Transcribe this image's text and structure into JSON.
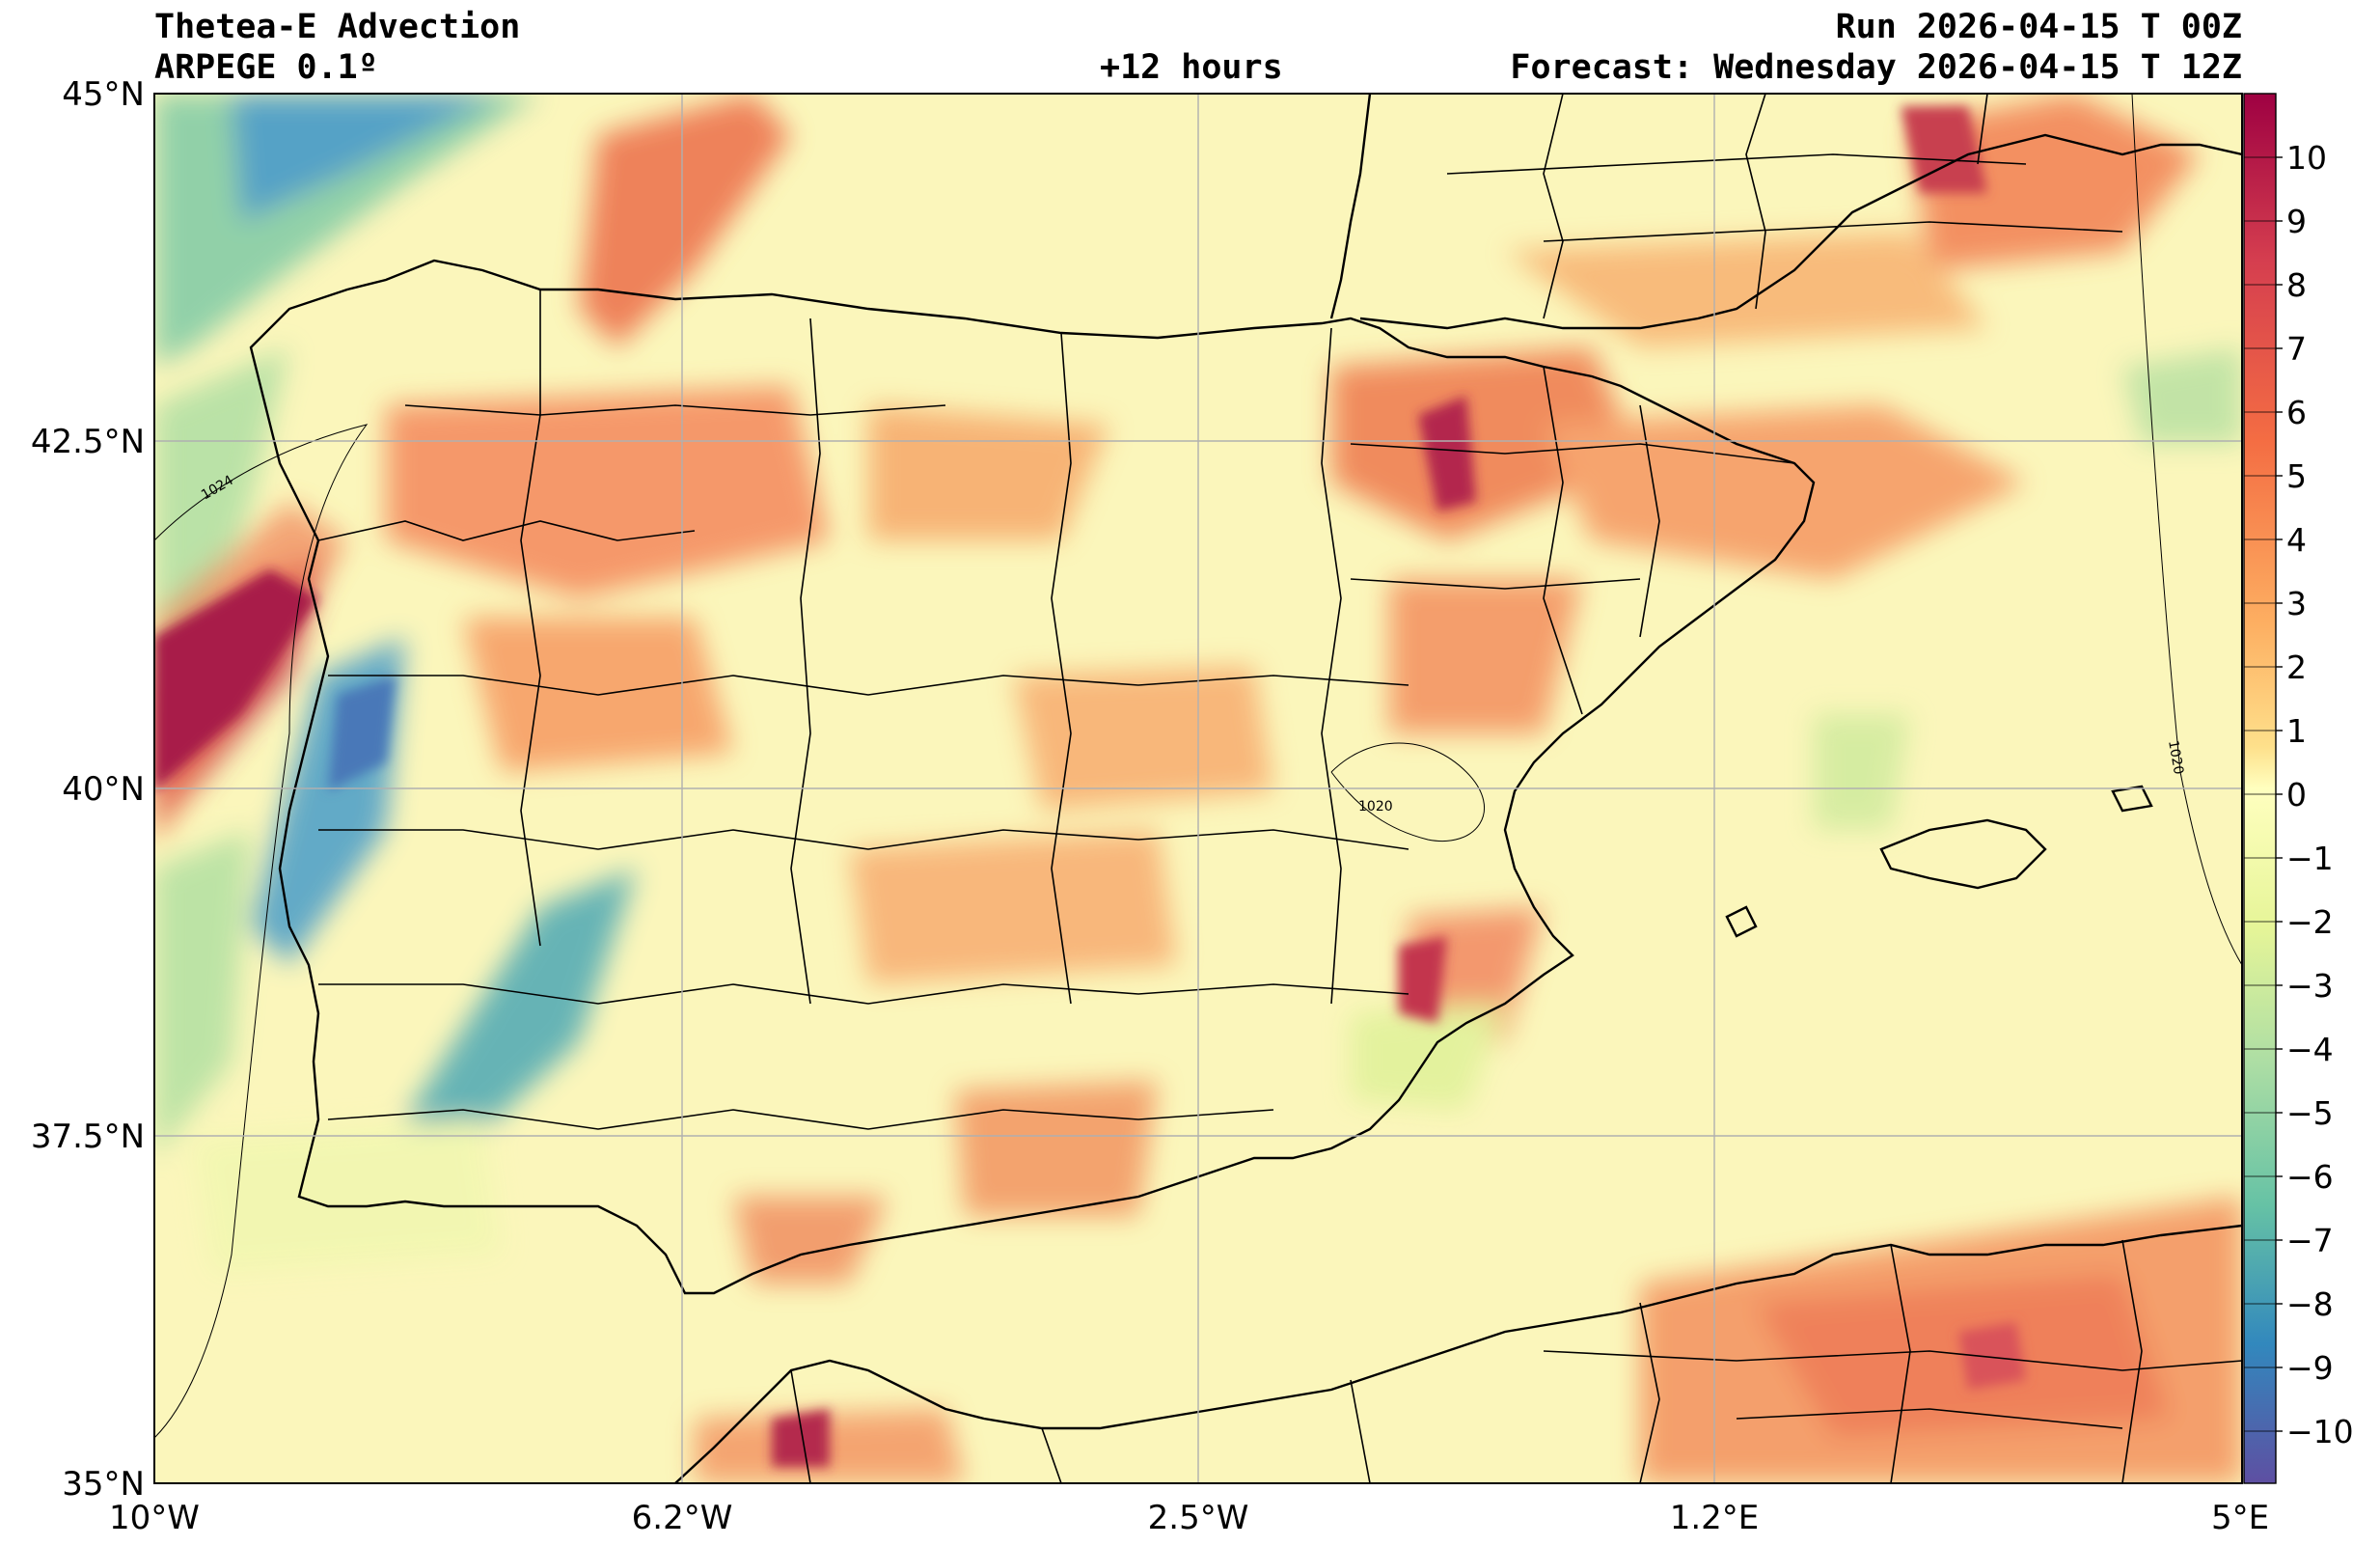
{
  "header": {
    "title": "Thetea-E Advection",
    "model": "ARPEGE 0.1º",
    "lead_time": "+12 hours",
    "run": "Run 2026-04-15 T 00Z",
    "forecast": "Forecast: Wednesday 2026-04-15 T 12Z"
  },
  "axes": {
    "lat_labels": [
      "45°N",
      "42.5°N",
      "40°N",
      "37.5°N",
      "35°N"
    ],
    "lon_labels": [
      "10°W",
      "6.2°W",
      "2.5°W",
      "1.2°E",
      "5°E"
    ]
  },
  "colorbar": {
    "ticks": [
      "10",
      "9",
      "8",
      "7",
      "6",
      "5",
      "4",
      "3",
      "2",
      "1",
      "0",
      "−1",
      "−2",
      "−3",
      "−4",
      "−5",
      "−6",
      "−7",
      "−8",
      "−9",
      "−10"
    ],
    "colors": [
      "#9e0142",
      "#d53e4f",
      "#f46d43",
      "#fdae61",
      "#fee08b",
      "#ffffbf",
      "#e6f598",
      "#abdda4",
      "#66c2a5",
      "#3288bd",
      "#5e4fa2"
    ]
  },
  "isobars": [
    "1024",
    "1020",
    "1020"
  ]
}
